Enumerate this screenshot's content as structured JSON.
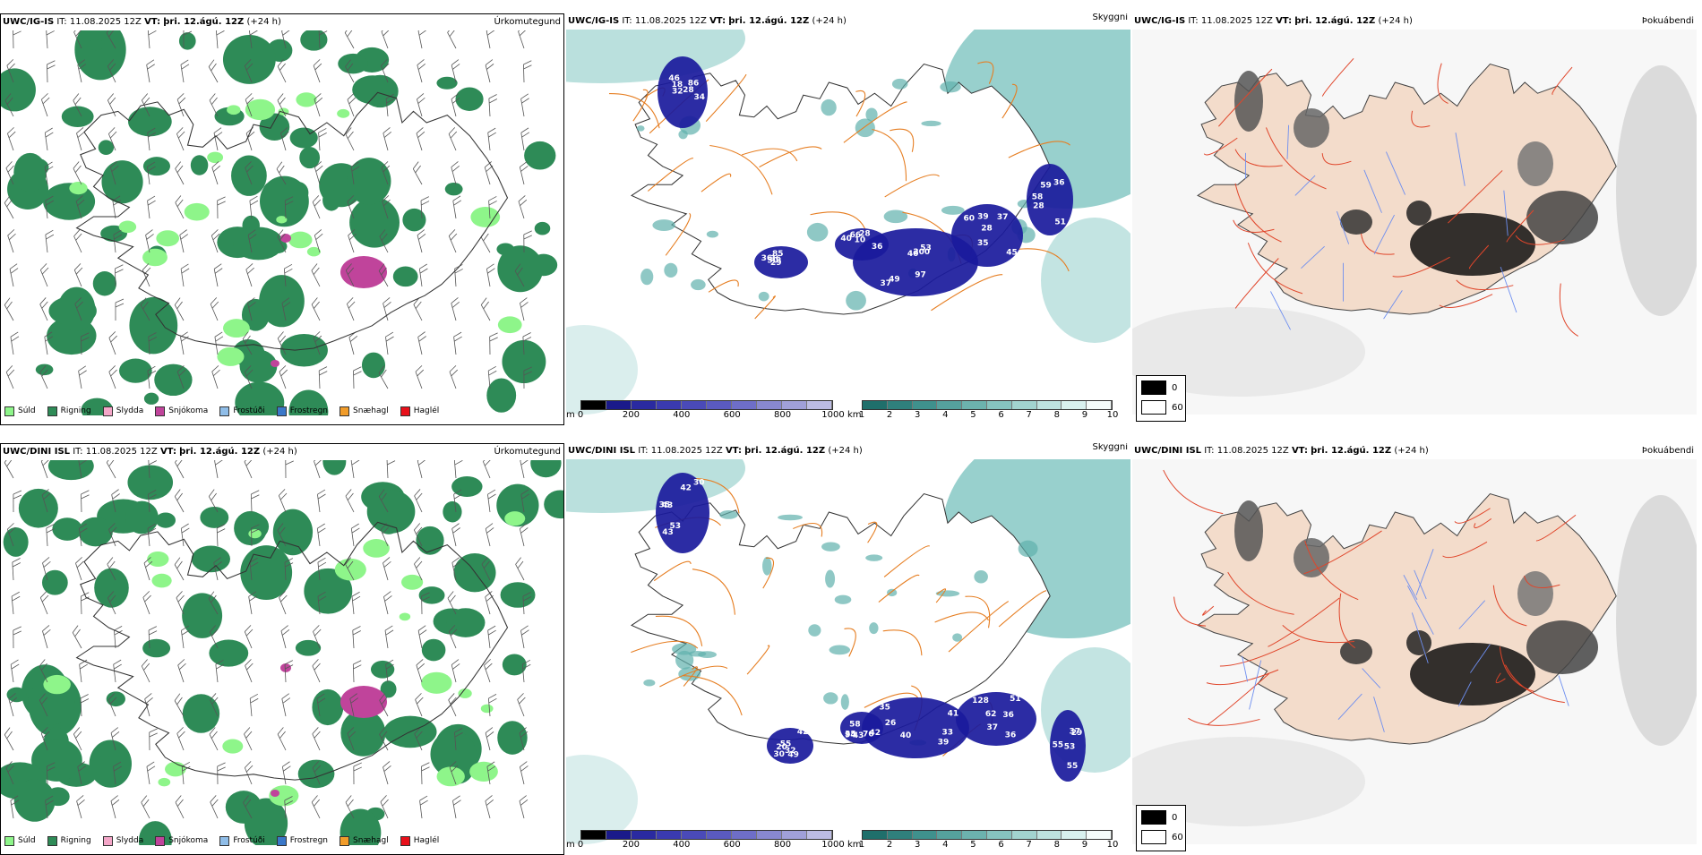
{
  "rows": [
    {
      "id": "ig",
      "model": "UWC/IG-IS",
      "it_prefix": "IT: 11.08.2025 12Z",
      "vt_prefix": "VT:",
      "vt_value": "þri. 12.ágú. 12Z",
      "lead": "(+24 h)",
      "panels": {
        "precip_title": "Úrkomutegund",
        "vis_title": "Skyggni",
        "fog_title": "Þokuábendi"
      },
      "cloud_labels": [
        "46",
        "49",
        "35",
        "85",
        "66",
        "58",
        "28",
        "53",
        "37",
        "36",
        "10",
        "51",
        "86",
        "37",
        "28",
        "29",
        "40",
        "28",
        "32",
        "97",
        "60",
        "36",
        "36",
        "36",
        "34",
        "40",
        "39",
        "50",
        "28",
        "59",
        "18",
        "200",
        "45"
      ]
    },
    {
      "id": "dini",
      "model": "UWC/DINI ISL",
      "it_prefix": "IT: 11.08.2025 12Z",
      "vt_prefix": "VT:",
      "vt_value": "þri. 12.ágú. 12Z",
      "lead": "(+24 h)",
      "panels": {
        "precip_title": "Úrkomutegund",
        "vis_title": "Skyggni",
        "fog_title": "Þokuábendi"
      },
      "cloud_labels": [
        "42",
        "35",
        "51",
        "55",
        "76",
        "53",
        "35",
        "41",
        "62",
        "42",
        "58",
        "55",
        "53",
        "39",
        "36",
        "49",
        "35",
        "29",
        "43",
        "40",
        "37",
        "30",
        "42",
        "37",
        "43",
        "26",
        "128",
        "20",
        "43",
        "55",
        "30",
        "33",
        "36",
        "32",
        "94"
      ]
    }
  ],
  "precip_legend": [
    {
      "label": "Súld",
      "color": "#8ef58a"
    },
    {
      "label": "Rigning",
      "color": "#2e8b57"
    },
    {
      "label": "Slydda",
      "color": "#f4a6c8"
    },
    {
      "label": "Snjókoma",
      "color": "#c0449b"
    },
    {
      "label": "Frostúði",
      "color": "#8fbde8"
    },
    {
      "label": "Frostregn",
      "color": "#3a78c9"
    },
    {
      "label": "Snæhagl",
      "color": "#f19c2a"
    },
    {
      "label": "Haglél",
      "color": "#e8101a"
    }
  ],
  "cloud_scale": {
    "unit": "m",
    "ticks": [
      "0",
      "200",
      "400",
      "600",
      "800",
      "1000"
    ]
  },
  "vis_scale": {
    "unit": "km",
    "ticks": [
      "1",
      "2",
      "3",
      "4",
      "5",
      "6",
      "7",
      "8",
      "9",
      "10"
    ]
  },
  "fog_legend": [
    {
      "label": "0",
      "color": "#000000"
    },
    {
      "label": "60",
      "color": "#ffffff"
    }
  ]
}
